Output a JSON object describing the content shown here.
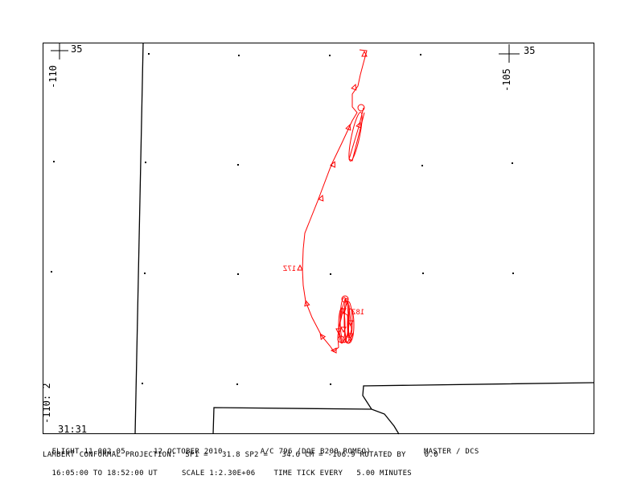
{
  "map": {
    "corner_labels": {
      "top_left_lat": "35",
      "top_left_lon": "-110",
      "top_right_lat": "35",
      "top_right_lon": "-105",
      "bottom_left_lon": "-110: 2",
      "bottom_left_lat": "31:31"
    },
    "time_labels": [
      {
        "text": "17Z",
        "name": "time-label-17z"
      },
      {
        "text": "18Z",
        "name": "time-label-18z"
      }
    ],
    "track_color": "#ff0000",
    "boundary_color": "#000000"
  },
  "footer": {
    "flight": "FLIGHT 11-002-05",
    "date": "12 OCTOBER 2010",
    "aircraft": "A/C 796 (DOE B200 ROMEO)",
    "source": "MASTER / DCS",
    "projection": "LAMBERT CONFORMAL PROJECTION:  SP1 =   31.8 SP2 =   34.6 CM = -106.9 ROTATED BY    0.0",
    "time_range": "16:05:00 TO 18:52:00 UT",
    "scale": "SCALE 1:2.30E+06",
    "time_tick": "TIME TICK EVERY   5.00 MINUTES"
  }
}
